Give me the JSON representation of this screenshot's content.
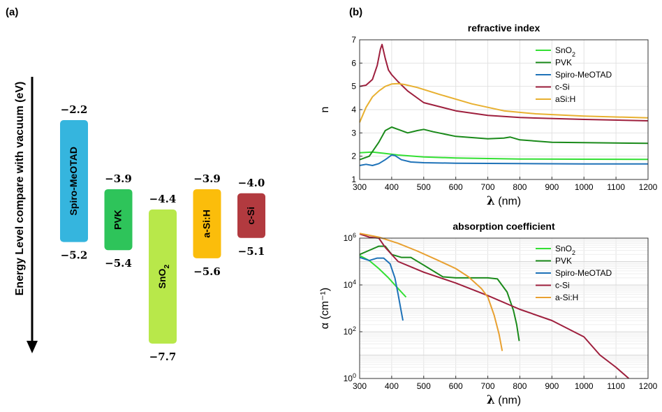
{
  "panel_a": {
    "label": "(a)",
    "ylabel": "Energy Level compare with vacuum (eV)",
    "bars": [
      {
        "name": "Spiro-MeOTAD",
        "top": -2.2,
        "bottom": -5.2,
        "top_label": "−2.2",
        "bottom_label": "−5.2",
        "color": "#35b5de"
      },
      {
        "name": "PVK",
        "top": -3.9,
        "bottom": -5.4,
        "top_label": "−3.9",
        "bottom_label": "−5.4",
        "color": "#2ec45a"
      },
      {
        "name": "SnO",
        "sub": "2",
        "top": -4.4,
        "bottom": -7.7,
        "top_label": "−4.4",
        "bottom_label": "−7.7",
        "color": "#b8e84a"
      },
      {
        "name": "a-Si:H",
        "top": -3.9,
        "bottom": -5.6,
        "top_label": "−3.9",
        "bottom_label": "−5.6",
        "color": "#fbbd0b"
      },
      {
        "name": "c-Si",
        "top": -4.0,
        "bottom": -5.1,
        "top_label": "−4.0",
        "bottom_label": "−5.1",
        "color": "#b23a3f"
      }
    ]
  },
  "panel_b_label": "(b)",
  "xlabel_symbol": "λ",
  "xlabel_unit": " (nm)",
  "chart_data": [
    {
      "type": "line",
      "title": "refractive index",
      "ylabel": "n",
      "xlim": [
        300,
        1200
      ],
      "ylim": [
        1,
        7
      ],
      "xticks": [
        300,
        400,
        500,
        600,
        700,
        800,
        900,
        1000,
        1100,
        1200
      ],
      "yticks": [
        1,
        2,
        3,
        4,
        5,
        6,
        7
      ],
      "grid": true,
      "legend": "top-right",
      "series": [
        {
          "name": "SnO",
          "sub": "2",
          "color": "#33e033",
          "x": [
            300,
            340,
            380,
            420,
            500,
            600,
            800,
            1000,
            1200
          ],
          "y": [
            2.15,
            2.18,
            2.12,
            2.05,
            1.97,
            1.92,
            1.88,
            1.87,
            1.86
          ]
        },
        {
          "name": "PVK",
          "color": "#1a8a1a",
          "x": [
            300,
            330,
            360,
            380,
            400,
            420,
            450,
            480,
            500,
            530,
            600,
            700,
            750,
            770,
            800,
            900,
            1000,
            1200
          ],
          "y": [
            1.85,
            2.0,
            2.6,
            3.1,
            3.25,
            3.15,
            3.0,
            3.1,
            3.15,
            3.05,
            2.85,
            2.75,
            2.78,
            2.82,
            2.7,
            2.6,
            2.58,
            2.55
          ]
        },
        {
          "name": "Spiro-MeOTAD",
          "color": "#1e72b8",
          "x": [
            300,
            320,
            340,
            360,
            380,
            400,
            410,
            430,
            460,
            500,
            600,
            800,
            1000,
            1200
          ],
          "y": [
            1.6,
            1.65,
            1.6,
            1.68,
            1.85,
            2.05,
            2.03,
            1.85,
            1.75,
            1.72,
            1.7,
            1.68,
            1.67,
            1.67
          ]
        },
        {
          "name": "c-Si",
          "color": "#9e1f3d",
          "x": [
            300,
            320,
            340,
            355,
            365,
            370,
            380,
            390,
            400,
            420,
            450,
            500,
            600,
            700,
            800,
            1000,
            1200
          ],
          "y": [
            5.0,
            5.05,
            5.3,
            5.9,
            6.6,
            6.8,
            6.2,
            5.7,
            5.5,
            5.2,
            4.8,
            4.3,
            3.95,
            3.75,
            3.66,
            3.58,
            3.52
          ]
        },
        {
          "name": "aSi:H",
          "color": "#e8b030",
          "x": [
            300,
            320,
            340,
            360,
            380,
            400,
            420,
            440,
            480,
            550,
            650,
            750,
            850,
            1000,
            1200
          ],
          "y": [
            3.45,
            4.1,
            4.55,
            4.8,
            5.0,
            5.1,
            5.12,
            5.08,
            4.95,
            4.65,
            4.25,
            3.95,
            3.82,
            3.72,
            3.65
          ]
        }
      ]
    },
    {
      "type": "line",
      "title": "absorption coefficient",
      "ylabel": "α (cm⁻¹)",
      "yscale": "log",
      "xlim": [
        300,
        1200
      ],
      "ylim": [
        1,
        1000000
      ],
      "xticks": [
        300,
        400,
        500,
        600,
        700,
        800,
        900,
        1000,
        1100,
        1200
      ],
      "yticks": [
        1,
        100,
        10000,
        1000000
      ],
      "grid": true,
      "legend": "top-right",
      "series": [
        {
          "name": "SnO",
          "sub": "2",
          "color": "#33e033",
          "x": [
            300,
            330,
            360,
            390,
            420,
            445
          ],
          "y": [
            180000,
            110000,
            50000,
            20000,
            7000,
            3000
          ]
        },
        {
          "name": "PVK",
          "color": "#1a8a1a",
          "x": [
            300,
            330,
            360,
            380,
            400,
            430,
            460,
            500,
            560,
            600,
            650,
            700,
            730,
            760,
            780,
            790,
            798
          ],
          "y": [
            200000,
            300000,
            450000,
            450000,
            200000,
            150000,
            150000,
            70000,
            22000,
            20000,
            20000,
            20000,
            18000,
            5000,
            800,
            200,
            40
          ]
        },
        {
          "name": "Spiro-MeOTAD",
          "color": "#1e72b8",
          "x": [
            300,
            330,
            355,
            375,
            395,
            410,
            420,
            430,
            435
          ],
          "y": [
            150000,
            110000,
            140000,
            140000,
            80000,
            20000,
            4000,
            700,
            300
          ]
        },
        {
          "name": "c-Si",
          "color": "#9e1f3d",
          "x": [
            300,
            330,
            360,
            380,
            420,
            500,
            600,
            700,
            800,
            900,
            1000,
            1050,
            1100,
            1140
          ],
          "y": [
            1500000,
            1100000,
            1000000,
            400000,
            100000,
            35000,
            12000,
            3500,
            900,
            300,
            60,
            10,
            3,
            1
          ]
        },
        {
          "name": "a-Si:H",
          "color": "#e8a030",
          "x": [
            300,
            360,
            420,
            480,
            540,
            600,
            640,
            680,
            700,
            720,
            735,
            745
          ],
          "y": [
            1600000,
            1100000,
            600000,
            280000,
            120000,
            50000,
            22000,
            7000,
            3000,
            500,
            80,
            15
          ]
        }
      ]
    }
  ]
}
